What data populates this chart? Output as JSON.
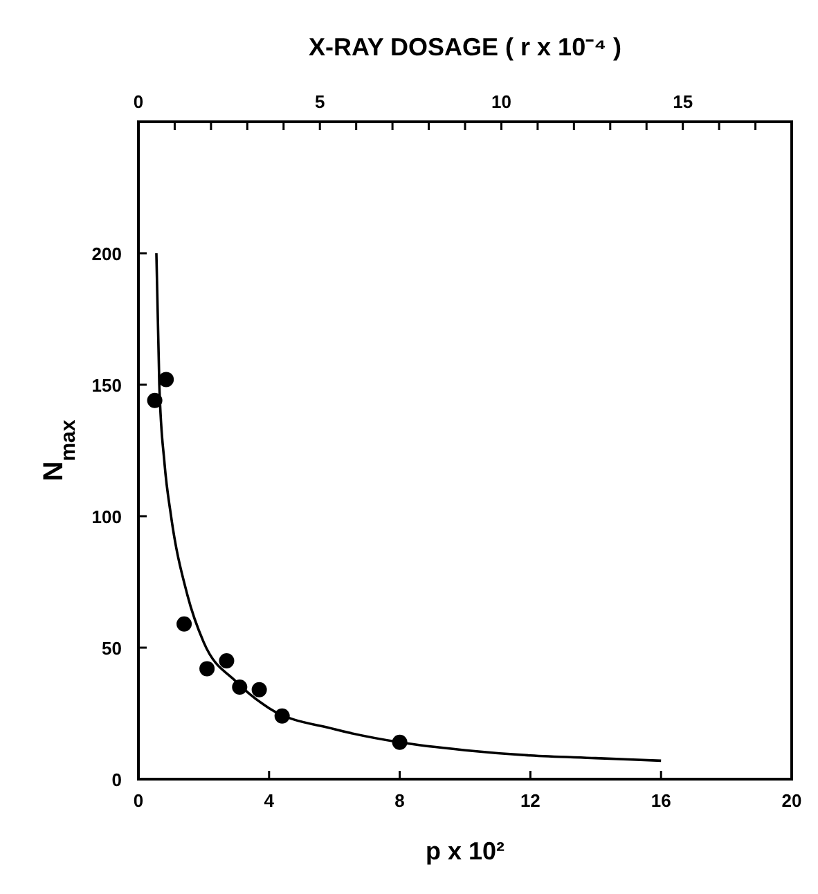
{
  "chart_data": {
    "type": "scatter",
    "xlabel": "p x 10²",
    "ylabel": "N$_{max}$",
    "x2label": "X-RAY DOSAGE  ( r x 10⁻⁴ )",
    "xlim": [
      0,
      20
    ],
    "xticks": [
      0,
      4,
      8,
      12,
      16,
      20
    ],
    "x2lim": [
      0,
      18
    ],
    "x2ticks": [
      0,
      {
        "value": 1,
        "label": null
      },
      {
        "value": 2,
        "label": null
      },
      {
        "value": 3,
        "label": null
      },
      {
        "value": 4,
        "label": null
      },
      5,
      {
        "value": 6,
        "label": null
      },
      {
        "value": 7,
        "label": null
      },
      {
        "value": 8,
        "label": null
      },
      {
        "value": 9,
        "label": null
      },
      10,
      {
        "value": 11,
        "label": null
      },
      {
        "value": 12,
        "label": null
      },
      {
        "value": 13,
        "label": null
      },
      {
        "value": 14,
        "label": null
      },
      15,
      {
        "value": 16,
        "label": null
      },
      {
        "value": 17,
        "label": null
      }
    ],
    "ylim": [
      0,
      250
    ],
    "yticks": [
      0,
      50,
      100,
      150,
      200
    ],
    "grid": false,
    "series": [
      {
        "color": "#000000",
        "marker": "circle",
        "x": [
          0.5,
          0.85,
          1.4,
          2.1,
          2.7,
          3.1,
          3.7,
          4.4,
          8.0
        ],
        "values": [
          144,
          152,
          59,
          42,
          45,
          35,
          34,
          24,
          14
        ]
      },
      {
        "type": "line",
        "color": "#000000",
        "line_style": "solid",
        "x": [
          0.55,
          0.64,
          0.8,
          1,
          1.5,
          2,
          3,
          4,
          6,
          8,
          10,
          12,
          14,
          16
        ],
        "values": [
          200,
          150,
          120,
          100,
          70,
          52,
          37,
          27,
          19,
          14,
          11,
          9,
          8,
          7
        ]
      }
    ]
  }
}
